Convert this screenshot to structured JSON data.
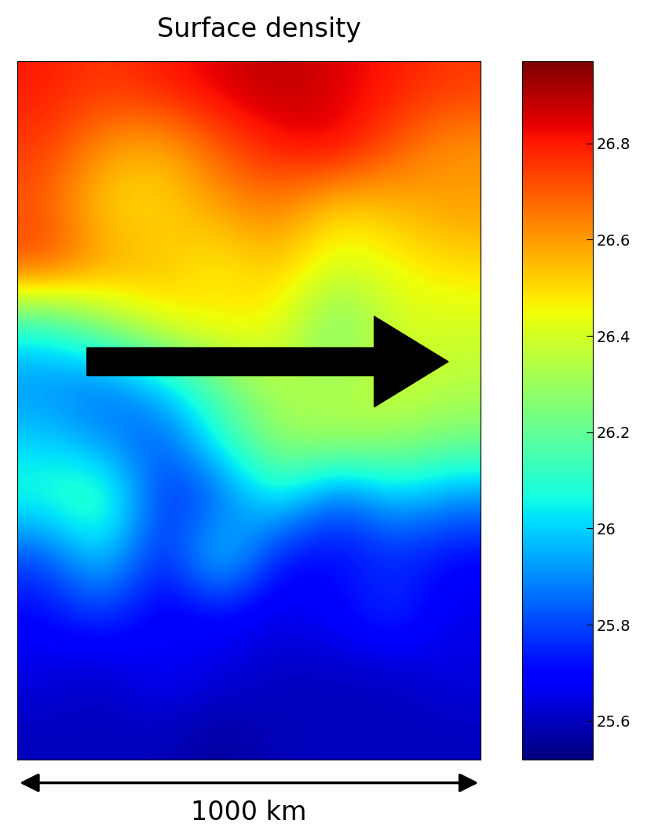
{
  "chart_data": {
    "type": "heatmap",
    "title": "Surface density",
    "cells": [
      [
        26.8,
        26.75,
        26.8,
        26.85,
        26.9,
        26.85,
        26.8,
        26.75
      ],
      [
        26.75,
        26.6,
        26.55,
        26.7,
        26.8,
        26.85,
        26.7,
        26.6
      ],
      [
        26.7,
        26.5,
        26.5,
        26.6,
        26.65,
        26.5,
        26.55,
        26.6
      ],
      [
        26.75,
        26.6,
        26.55,
        26.45,
        26.55,
        26.4,
        26.45,
        26.5
      ],
      [
        26.1,
        26.3,
        26.45,
        26.5,
        26.45,
        26.2,
        26.4,
        26.4
      ],
      [
        25.9,
        25.85,
        26.0,
        26.2,
        26.35,
        26.3,
        26.4,
        26.35
      ],
      [
        26.0,
        25.9,
        25.8,
        26.1,
        26.3,
        26.35,
        26.3,
        26.25
      ],
      [
        26.1,
        26.2,
        25.75,
        25.8,
        26.1,
        25.8,
        26.0,
        25.9
      ],
      [
        25.8,
        26.05,
        25.7,
        26.1,
        25.7,
        25.7,
        25.75,
        25.7
      ],
      [
        25.7,
        25.8,
        25.65,
        25.7,
        25.65,
        25.7,
        25.8,
        25.65
      ],
      [
        25.65,
        25.6,
        25.7,
        25.65,
        25.6,
        25.6,
        25.6,
        25.65
      ],
      [
        25.6,
        25.6,
        25.6,
        25.55,
        25.6,
        25.6,
        25.6,
        25.6
      ]
    ],
    "color_range": [
      25.52,
      26.97
    ],
    "color_ticks": [
      25.6,
      25.8,
      26,
      26.2,
      26.4,
      26.6,
      26.8
    ],
    "annotation": "1000 km",
    "tick_labels": false
  }
}
